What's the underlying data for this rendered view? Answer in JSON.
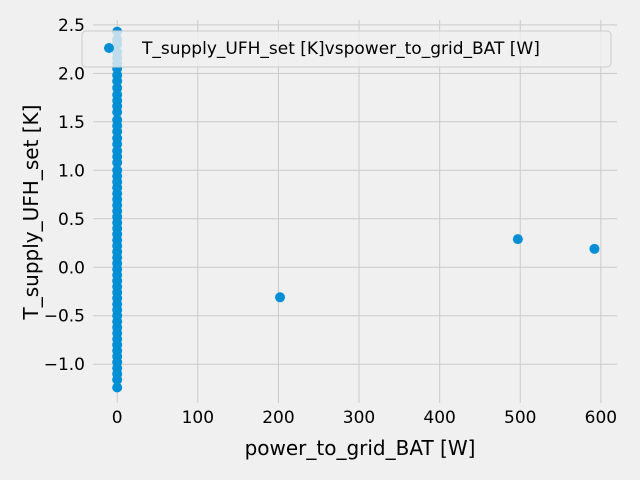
{
  "chart_data": {
    "type": "scatter",
    "xlabel": "power_to_grid_BAT [W]",
    "ylabel": "T_supply_UFH_set [K]",
    "xlim": [
      -30,
      620
    ],
    "ylim": [
      -1.4,
      2.55
    ],
    "grid": true,
    "legend_position": "top-right",
    "x_ticks": [
      0,
      100,
      200,
      300,
      400,
      500,
      600
    ],
    "y_ticks": [
      -1.0,
      -0.5,
      0.0,
      0.5,
      1.0,
      1.5,
      2.0,
      2.5
    ],
    "x_tick_labels": [
      "0",
      "100",
      "200",
      "300",
      "400",
      "500",
      "600"
    ],
    "y_tick_labels": [
      "−1.0",
      "−0.5",
      "0.0",
      "0.5",
      "1.0",
      "1.5",
      "2.0",
      "2.5"
    ],
    "series": [
      {
        "name": "T_supply_UFH_set [K]vspower_to_grid_BAT [W]",
        "color": "#008fd5",
        "points": [
          [
            202,
            -0.31
          ],
          [
            497,
            0.29
          ],
          [
            592,
            0.19
          ],
          [
            0,
            2.43
          ],
          [
            0,
            2.35
          ],
          [
            0,
            2.3
          ],
          [
            0,
            2.22
          ],
          [
            0,
            2.16
          ],
          [
            0,
            2.1
          ],
          [
            0,
            2.05
          ],
          [
            0,
            1.98
          ],
          [
            0,
            1.92
          ],
          [
            0,
            1.85
          ],
          [
            0,
            1.78
          ],
          [
            0,
            1.72
          ],
          [
            0,
            1.66
          ],
          [
            0,
            1.6
          ],
          [
            0,
            1.52
          ],
          [
            0,
            1.46
          ],
          [
            0,
            1.4
          ],
          [
            0,
            1.33
          ],
          [
            0,
            1.27
          ],
          [
            0,
            1.2
          ],
          [
            0,
            1.14
          ],
          [
            0,
            1.08
          ],
          [
            0,
            1.0
          ],
          [
            0,
            0.94
          ],
          [
            0,
            0.88
          ],
          [
            0,
            0.82
          ],
          [
            0,
            0.76
          ],
          [
            0,
            0.7
          ],
          [
            0,
            0.64
          ],
          [
            0,
            0.58
          ],
          [
            0,
            0.52
          ],
          [
            0,
            0.46
          ],
          [
            0,
            0.4
          ],
          [
            0,
            0.34
          ],
          [
            0,
            0.28
          ],
          [
            0,
            0.22
          ],
          [
            0,
            0.16
          ],
          [
            0,
            0.1
          ],
          [
            0,
            0.04
          ],
          [
            0,
            -0.02
          ],
          [
            0,
            -0.08
          ],
          [
            0,
            -0.14
          ],
          [
            0,
            -0.2
          ],
          [
            0,
            -0.26
          ],
          [
            0,
            -0.32
          ],
          [
            0,
            -0.38
          ],
          [
            0,
            -0.44
          ],
          [
            0,
            -0.5
          ],
          [
            0,
            -0.56
          ],
          [
            0,
            -0.62
          ],
          [
            0,
            -0.68
          ],
          [
            0,
            -0.74
          ],
          [
            0,
            -0.8
          ],
          [
            0,
            -0.86
          ],
          [
            0,
            -0.92
          ],
          [
            0,
            -0.98
          ],
          [
            0,
            -1.04
          ],
          [
            0,
            -1.1
          ],
          [
            0,
            -1.16
          ],
          [
            0,
            -1.24
          ]
        ]
      }
    ]
  }
}
